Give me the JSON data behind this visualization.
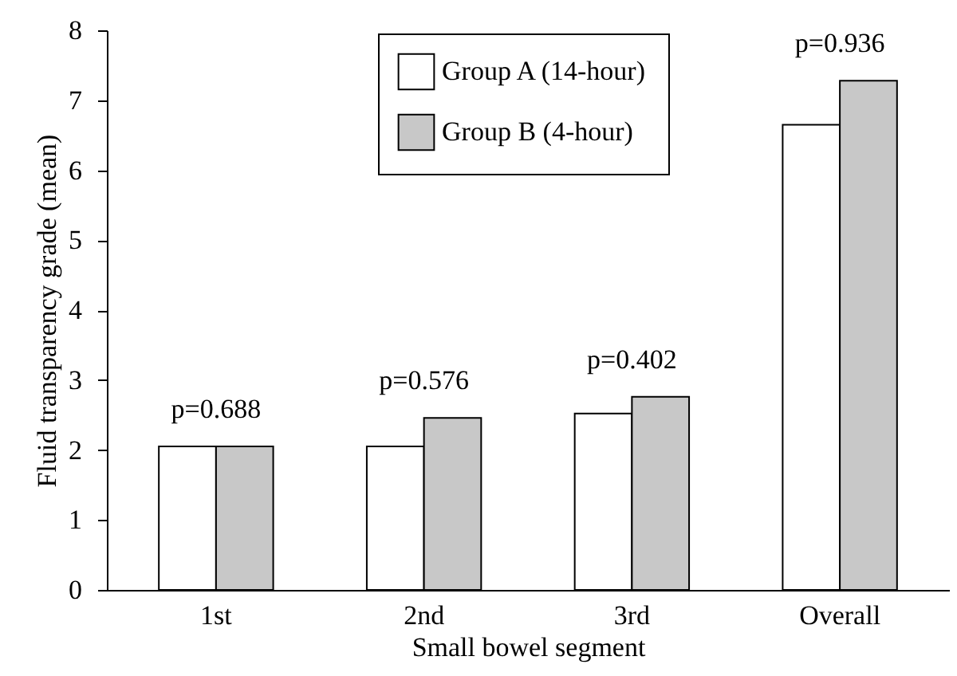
{
  "chart_data": {
    "type": "bar",
    "xlabel": "Small bowel segment",
    "ylabel": "Fluid transparency grade (mean)",
    "categories": [
      "1st",
      "2nd",
      "3rd",
      "Overall"
    ],
    "series": [
      {
        "name": "Group A (14-hour)",
        "color": "#ffffff",
        "values": [
          2.05,
          2.05,
          2.52,
          6.65
        ]
      },
      {
        "name": "Group B (4-hour)",
        "color": "#c8c8c8",
        "values": [
          2.05,
          2.46,
          2.76,
          7.28
        ]
      }
    ],
    "ylim": [
      0,
      8
    ],
    "yticks": [
      0,
      1,
      2,
      3,
      4,
      5,
      6,
      7,
      8
    ],
    "grid": false,
    "legend": "top right",
    "annotations": [
      "p=0.688",
      "p=0.576",
      "p=0.402",
      "p=0.936"
    ]
  }
}
